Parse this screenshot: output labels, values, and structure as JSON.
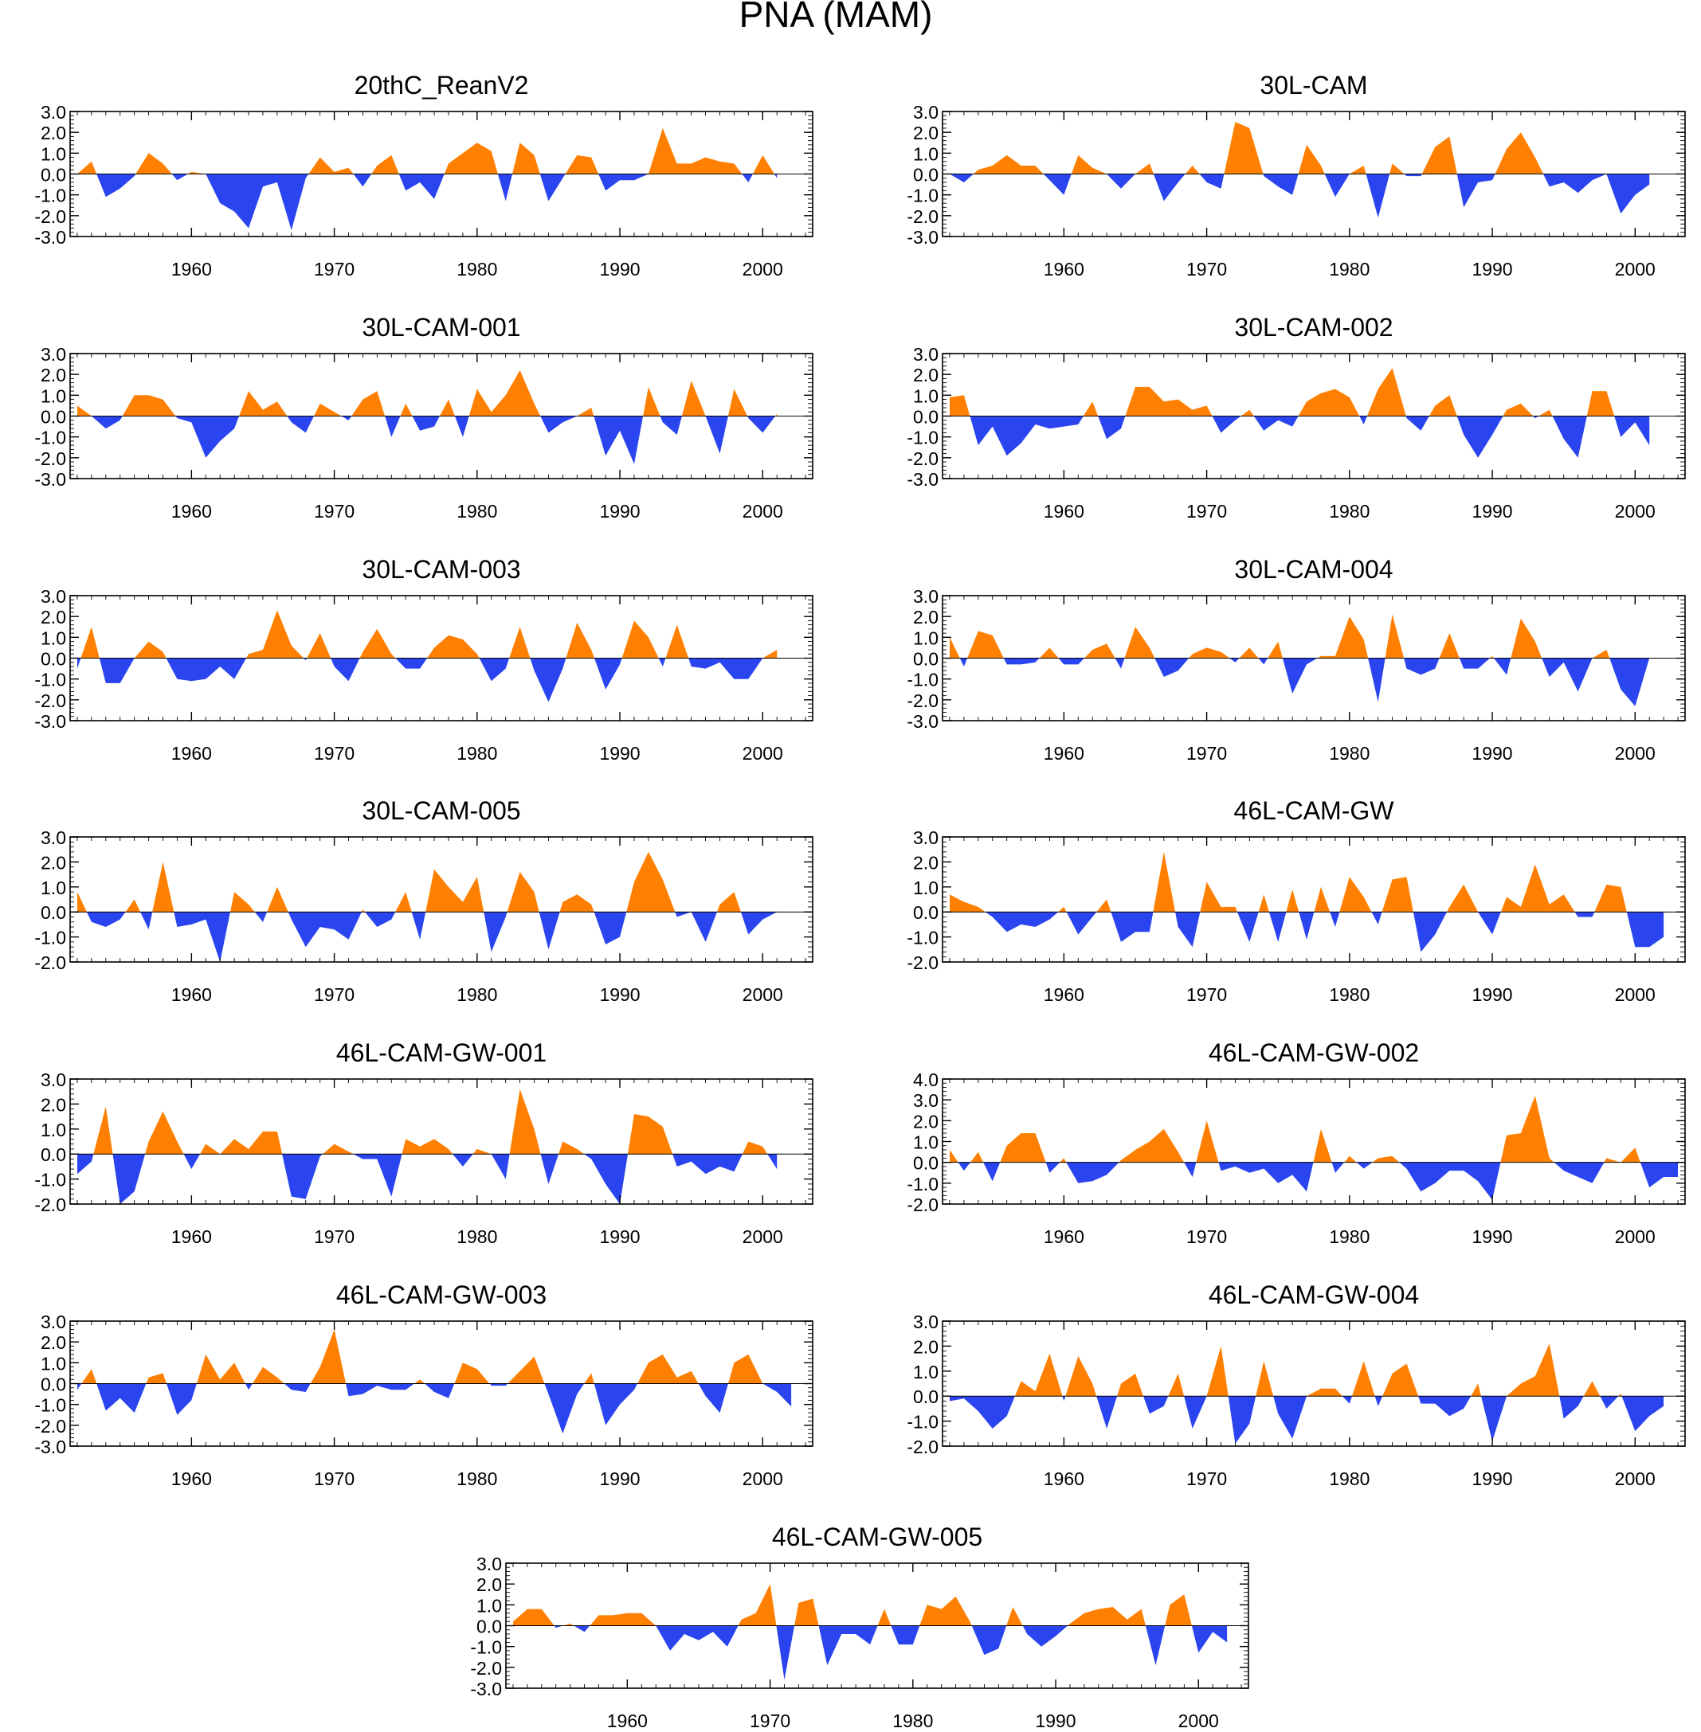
{
  "title": "PNA (MAM)",
  "colors": {
    "positive": "#ff8000",
    "negative": "#2a45f0",
    "axis": "#000000",
    "background": "#ffffff"
  },
  "x_ticks": [
    1960,
    1970,
    1980,
    1990,
    2000
  ],
  "chart_data": [
    {
      "type": "area",
      "title": "20thC_ReanV2",
      "x_start": 1952,
      "xlim": [
        1951.5,
        2003.5
      ],
      "ylim": [
        -3.0,
        3.0
      ],
      "y_ticks": [
        "3.0",
        "2.0",
        "1.0",
        "0.0",
        "-1.0",
        "-2.0",
        "-3.0"
      ],
      "y_tick_values": [
        3,
        2,
        1,
        0,
        -1,
        -2,
        -3
      ],
      "values": [
        0.0,
        0.6,
        -1.1,
        -0.7,
        -0.1,
        1.0,
        0.5,
        -0.3,
        0.1,
        0.0,
        -1.4,
        -1.8,
        -2.6,
        -0.6,
        -0.4,
        -2.7,
        -0.2,
        0.8,
        0.1,
        0.3,
        -0.6,
        0.4,
        0.9,
        -0.8,
        -0.4,
        -1.2,
        0.5,
        1.0,
        1.5,
        1.1,
        -1.3,
        1.5,
        0.9,
        -1.3,
        -0.2,
        0.9,
        0.8,
        -0.8,
        -0.3,
        -0.3,
        0.0,
        2.2,
        0.5,
        0.5,
        0.8,
        0.6,
        0.5,
        -0.4,
        0.9,
        -0.2
      ]
    },
    {
      "type": "area",
      "title": "30L-CAM",
      "x_start": 1952,
      "xlim": [
        1951.5,
        2003.5
      ],
      "ylim": [
        -3.0,
        3.0
      ],
      "y_ticks": [
        "3.0",
        "2.0",
        "1.0",
        "0.0",
        "-1.0",
        "-2.0",
        "-3.0"
      ],
      "y_tick_values": [
        3,
        2,
        1,
        0,
        -1,
        -2,
        -3
      ],
      "values": [
        0.0,
        -0.4,
        0.2,
        0.4,
        0.9,
        0.4,
        0.4,
        -0.3,
        -1.0,
        0.9,
        0.3,
        0.0,
        -0.7,
        0.0,
        0.5,
        -1.3,
        -0.4,
        0.4,
        -0.4,
        -0.7,
        2.5,
        2.2,
        -0.1,
        -0.6,
        -1.0,
        1.4,
        0.4,
        -1.1,
        0.0,
        0.4,
        -2.1,
        0.5,
        -0.1,
        -0.1,
        1.3,
        1.8,
        -1.6,
        -0.4,
        -0.3,
        1.2,
        2.0,
        0.8,
        -0.6,
        -0.4,
        -0.9,
        -0.3,
        0.0,
        -1.9,
        -1.0,
        -0.5
      ]
    },
    {
      "type": "area",
      "title": "30L-CAM-001",
      "x_start": 1952,
      "xlim": [
        1951.5,
        2003.5
      ],
      "ylim": [
        -3.0,
        3.0
      ],
      "y_ticks": [
        "3.0",
        "2.0",
        "1.0",
        "0.0",
        "-1.0",
        "-2.0",
        "-3.0"
      ],
      "y_tick_values": [
        3,
        2,
        1,
        0,
        -1,
        -2,
        -3
      ],
      "values": [
        0.5,
        0.0,
        -0.6,
        -0.2,
        1.0,
        1.0,
        0.8,
        -0.1,
        -0.3,
        -2.0,
        -1.2,
        -0.6,
        1.2,
        0.3,
        0.7,
        -0.3,
        -0.8,
        0.6,
        0.2,
        -0.2,
        0.8,
        1.2,
        -1.0,
        0.6,
        -0.7,
        -0.5,
        0.8,
        -1.0,
        1.3,
        0.2,
        1.0,
        2.2,
        0.6,
        -0.8,
        -0.3,
        0.0,
        0.4,
        -1.9,
        -0.7,
        -2.3,
        1.4,
        -0.3,
        -0.9,
        1.7,
        0.0,
        -1.8,
        1.3,
        -0.1,
        -0.8,
        0.1
      ]
    },
    {
      "type": "area",
      "title": "30L-CAM-002",
      "x_start": 1952,
      "xlim": [
        1951.5,
        2003.5
      ],
      "ylim": [
        -3.0,
        3.0
      ],
      "y_ticks": [
        "3.0",
        "2.0",
        "1.0",
        "0.0",
        "-1.0",
        "-2.0",
        "-3.0"
      ],
      "y_tick_values": [
        3,
        2,
        1,
        0,
        -1,
        -2,
        -3
      ],
      "values": [
        0.9,
        1.0,
        -1.4,
        -0.5,
        -1.9,
        -1.3,
        -0.4,
        -0.6,
        -0.5,
        -0.4,
        0.7,
        -1.1,
        -0.6,
        1.4,
        1.4,
        0.7,
        0.8,
        0.3,
        0.5,
        -0.8,
        -0.2,
        0.3,
        -0.7,
        -0.2,
        -0.5,
        0.7,
        1.1,
        1.3,
        0.9,
        -0.4,
        1.3,
        2.3,
        -0.1,
        -0.7,
        0.5,
        1.0,
        -0.9,
        -2.0,
        -0.9,
        0.3,
        0.6,
        -0.1,
        0.3,
        -1.1,
        -2.0,
        1.2,
        1.2,
        -1.0,
        -0.3,
        -1.4
      ]
    },
    {
      "type": "area",
      "title": "30L-CAM-003",
      "x_start": 1952,
      "xlim": [
        1951.5,
        2003.5
      ],
      "ylim": [
        -3.0,
        3.0
      ],
      "y_ticks": [
        "3.0",
        "2.0",
        "1.0",
        "0.0",
        "-1.0",
        "-2.0",
        "-3.0"
      ],
      "y_tick_values": [
        3,
        2,
        1,
        0,
        -1,
        -2,
        -3
      ],
      "values": [
        -0.5,
        1.5,
        -1.2,
        -1.2,
        0.0,
        0.8,
        0.3,
        -1.0,
        -1.1,
        -1.0,
        -0.4,
        -1.0,
        0.2,
        0.4,
        2.3,
        0.6,
        -0.1,
        1.2,
        -0.4,
        -1.1,
        0.3,
        1.4,
        0.2,
        -0.5,
        -0.5,
        0.5,
        1.1,
        0.9,
        0.2,
        -1.1,
        -0.5,
        1.5,
        -0.6,
        -2.1,
        -0.5,
        1.7,
        0.4,
        -1.5,
        -0.3,
        1.8,
        1.0,
        -0.4,
        1.6,
        -0.4,
        -0.5,
        -0.2,
        -1.0,
        -1.0,
        0.0,
        0.4
      ]
    },
    {
      "type": "area",
      "title": "30L-CAM-004",
      "x_start": 1952,
      "xlim": [
        1951.5,
        2003.5
      ],
      "ylim": [
        -3.0,
        3.0
      ],
      "y_ticks": [
        "3.0",
        "2.0",
        "1.0",
        "0.0",
        "-1.0",
        "-2.0",
        "-3.0"
      ],
      "y_tick_values": [
        3,
        2,
        1,
        0,
        -1,
        -2,
        -3
      ],
      "values": [
        1.0,
        -0.4,
        1.3,
        1.1,
        -0.3,
        -0.3,
        -0.2,
        0.5,
        -0.3,
        -0.3,
        0.4,
        0.7,
        -0.5,
        1.5,
        0.5,
        -0.9,
        -0.6,
        0.2,
        0.5,
        0.3,
        -0.2,
        0.5,
        -0.3,
        0.8,
        -1.7,
        -0.3,
        0.1,
        0.1,
        2.0,
        0.9,
        -2.1,
        2.1,
        -0.5,
        -0.8,
        -0.5,
        1.2,
        -0.5,
        -0.5,
        0.1,
        -0.8,
        1.9,
        0.8,
        -0.9,
        -0.2,
        -1.6,
        0.0,
        0.4,
        -1.5,
        -2.3,
        0.0
      ]
    },
    {
      "type": "area",
      "title": "30L-CAM-005",
      "x_start": 1952,
      "xlim": [
        1951.5,
        2003.5
      ],
      "ylim": [
        -2.0,
        3.0
      ],
      "y_ticks": [
        "3.0",
        "2.0",
        "1.0",
        "0.0",
        "-1.0",
        "-2.0"
      ],
      "y_tick_values": [
        3,
        2,
        1,
        0,
        -1,
        -2
      ],
      "values": [
        0.8,
        -0.4,
        -0.6,
        -0.3,
        0.5,
        -0.7,
        2.0,
        -0.6,
        -0.5,
        -0.3,
        -2.0,
        0.8,
        0.3,
        -0.4,
        1.0,
        -0.3,
        -1.4,
        -0.6,
        -0.7,
        -1.1,
        0.1,
        -0.6,
        -0.3,
        0.8,
        -1.1,
        1.7,
        1.0,
        0.4,
        1.4,
        -1.6,
        -0.2,
        1.6,
        0.8,
        -1.5,
        0.4,
        0.7,
        0.3,
        -1.3,
        -1.0,
        1.2,
        2.4,
        1.3,
        -0.2,
        0.0,
        -1.2,
        0.3,
        0.8,
        -0.9,
        -0.3,
        0.0
      ]
    },
    {
      "type": "area",
      "title": "46L-CAM-GW",
      "x_start": 1952,
      "xlim": [
        1951.5,
        2003.5
      ],
      "ylim": [
        -2.0,
        3.0
      ],
      "y_ticks": [
        "3.0",
        "2.0",
        "1.0",
        "0.0",
        "-1.0",
        "-2.0"
      ],
      "y_tick_values": [
        3,
        2,
        1,
        0,
        -1,
        -2
      ],
      "values": [
        0.7,
        0.4,
        0.2,
        -0.2,
        -0.8,
        -0.5,
        -0.6,
        -0.3,
        0.2,
        -0.9,
        -0.2,
        0.5,
        -1.2,
        -0.8,
        -0.8,
        2.4,
        -0.6,
        -1.4,
        1.2,
        0.2,
        0.2,
        -1.2,
        0.7,
        -1.2,
        0.9,
        -1.1,
        1.0,
        -0.6,
        1.4,
        0.6,
        -0.5,
        1.3,
        1.4,
        -1.6,
        -0.9,
        0.2,
        1.1,
        0.0,
        -0.9,
        0.6,
        0.2,
        1.9,
        0.3,
        0.7,
        -0.2,
        -0.2,
        1.1,
        1.0,
        -1.4,
        -1.4,
        -1.0
      ]
    },
    {
      "type": "area",
      "title": "46L-CAM-GW-001",
      "x_start": 1952,
      "xlim": [
        1951.5,
        2003.5
      ],
      "ylim": [
        -2.0,
        3.0
      ],
      "y_ticks": [
        "3.0",
        "2.0",
        "1.0",
        "0.0",
        "-1.0",
        "-2.0"
      ],
      "y_tick_values": [
        3,
        2,
        1,
        0,
        -1,
        -2
      ],
      "values": [
        -0.8,
        -0.3,
        1.9,
        -2.0,
        -1.5,
        0.5,
        1.7,
        0.5,
        -0.6,
        0.4,
        0.0,
        0.6,
        0.2,
        0.9,
        0.9,
        -1.7,
        -1.8,
        -0.1,
        0.4,
        0.1,
        -0.2,
        -0.2,
        -1.7,
        0.6,
        0.3,
        0.6,
        0.2,
        -0.5,
        0.2,
        0.0,
        -1.0,
        2.6,
        1.0,
        -1.2,
        0.5,
        0.2,
        -0.2,
        -1.2,
        -2.0,
        1.6,
        1.5,
        1.1,
        -0.5,
        -0.3,
        -0.8,
        -0.5,
        -0.7,
        0.5,
        0.3,
        -0.6
      ]
    },
    {
      "type": "area",
      "title": "46L-CAM-GW-002",
      "x_start": 1952,
      "xlim": [
        1951.5,
        2003.5
      ],
      "ylim": [
        -2.0,
        4.0
      ],
      "y_ticks": [
        "4.0",
        "3.0",
        "2.0",
        "1.0",
        "0.0",
        "-1.0",
        "-2.0"
      ],
      "y_tick_values": [
        4,
        3,
        2,
        1,
        0,
        -1,
        -2
      ],
      "values": [
        0.6,
        -0.4,
        0.5,
        -0.9,
        0.8,
        1.4,
        1.4,
        -0.5,
        0.2,
        -1.0,
        -0.9,
        -0.6,
        0.1,
        0.6,
        1.0,
        1.6,
        0.5,
        -0.7,
        2.0,
        -0.4,
        -0.2,
        -0.5,
        -0.3,
        -1.0,
        -0.6,
        -1.4,
        1.6,
        -0.5,
        0.3,
        -0.3,
        0.2,
        0.3,
        -0.3,
        -1.4,
        -1.0,
        -0.4,
        -0.4,
        -0.9,
        -1.8,
        1.3,
        1.4,
        3.2,
        0.2,
        -0.4,
        -0.7,
        -1.0,
        0.2,
        0.0,
        0.7,
        -1.2,
        -0.7,
        -0.7
      ]
    },
    {
      "type": "area",
      "title": "46L-CAM-GW-003",
      "x_start": 1952,
      "xlim": [
        1951.5,
        2003.5
      ],
      "ylim": [
        -3.0,
        3.0
      ],
      "y_ticks": [
        "3.0",
        "2.0",
        "1.0",
        "0.0",
        "-1.0",
        "-2.0",
        "-3.0"
      ],
      "y_tick_values": [
        3,
        2,
        1,
        0,
        -1,
        -2,
        -3
      ],
      "values": [
        -0.3,
        0.7,
        -1.3,
        -0.7,
        -1.4,
        0.3,
        0.5,
        -1.5,
        -0.8,
        1.4,
        0.2,
        1.0,
        -0.3,
        0.8,
        0.3,
        -0.3,
        -0.4,
        0.8,
        2.6,
        -0.6,
        -0.5,
        -0.1,
        -0.3,
        -0.3,
        0.2,
        -0.4,
        -0.7,
        1.0,
        0.7,
        -0.1,
        -0.1,
        0.6,
        1.3,
        -0.5,
        -2.4,
        -0.5,
        0.5,
        -2.0,
        -1.0,
        -0.3,
        1.0,
        1.4,
        0.3,
        0.6,
        -0.6,
        -1.4,
        1.0,
        1.4,
        0.0,
        -0.4,
        -1.1
      ]
    },
    {
      "type": "area",
      "title": "46L-CAM-GW-004",
      "x_start": 1952,
      "xlim": [
        1951.5,
        2003.5
      ],
      "ylim": [
        -2.0,
        3.0
      ],
      "y_ticks": [
        "3.0",
        "2.0",
        "1.0",
        "0.0",
        "-1.0",
        "-2.0"
      ],
      "y_tick_values": [
        3,
        2,
        1,
        0,
        -1,
        -2
      ],
      "values": [
        -0.2,
        -0.1,
        -0.6,
        -1.3,
        -0.8,
        0.6,
        0.2,
        1.7,
        -0.2,
        1.6,
        0.5,
        -1.3,
        0.5,
        0.9,
        -0.7,
        -0.4,
        0.9,
        -1.3,
        0.0,
        2.0,
        -1.9,
        -1.1,
        1.4,
        -0.7,
        -1.7,
        0.0,
        0.3,
        0.3,
        -0.3,
        1.4,
        -0.4,
        0.9,
        1.3,
        -0.3,
        -0.3,
        -0.8,
        -0.5,
        0.5,
        -1.8,
        0.0,
        0.5,
        0.8,
        2.1,
        -0.9,
        -0.4,
        0.6,
        -0.5,
        0.1,
        -1.4,
        -0.8,
        -0.4
      ]
    },
    {
      "type": "area",
      "title": "46L-CAM-GW-005",
      "x_start": 1952,
      "xlim": [
        1951.5,
        2003.5
      ],
      "ylim": [
        -3.0,
        3.0
      ],
      "y_ticks": [
        "3.0",
        "2.0",
        "1.0",
        "0.0",
        "-1.0",
        "-2.0",
        "-3.0"
      ],
      "y_tick_values": [
        3,
        2,
        1,
        0,
        -1,
        -2,
        -3
      ],
      "values": [
        0.2,
        0.8,
        0.8,
        -0.1,
        0.1,
        -0.3,
        0.5,
        0.5,
        0.6,
        0.6,
        0.0,
        -1.2,
        -0.4,
        -0.7,
        -0.3,
        -1.0,
        0.3,
        0.6,
        2.0,
        -2.6,
        1.1,
        1.3,
        -1.9,
        -0.4,
        -0.4,
        -0.9,
        0.8,
        -0.9,
        -0.9,
        1.0,
        0.8,
        1.4,
        0.2,
        -1.4,
        -1.1,
        0.9,
        -0.4,
        -1.0,
        -0.5,
        0.1,
        0.6,
        0.8,
        0.9,
        0.3,
        0.8,
        -1.9,
        1.0,
        1.5,
        -1.3,
        -0.3,
        -0.8
      ]
    }
  ]
}
